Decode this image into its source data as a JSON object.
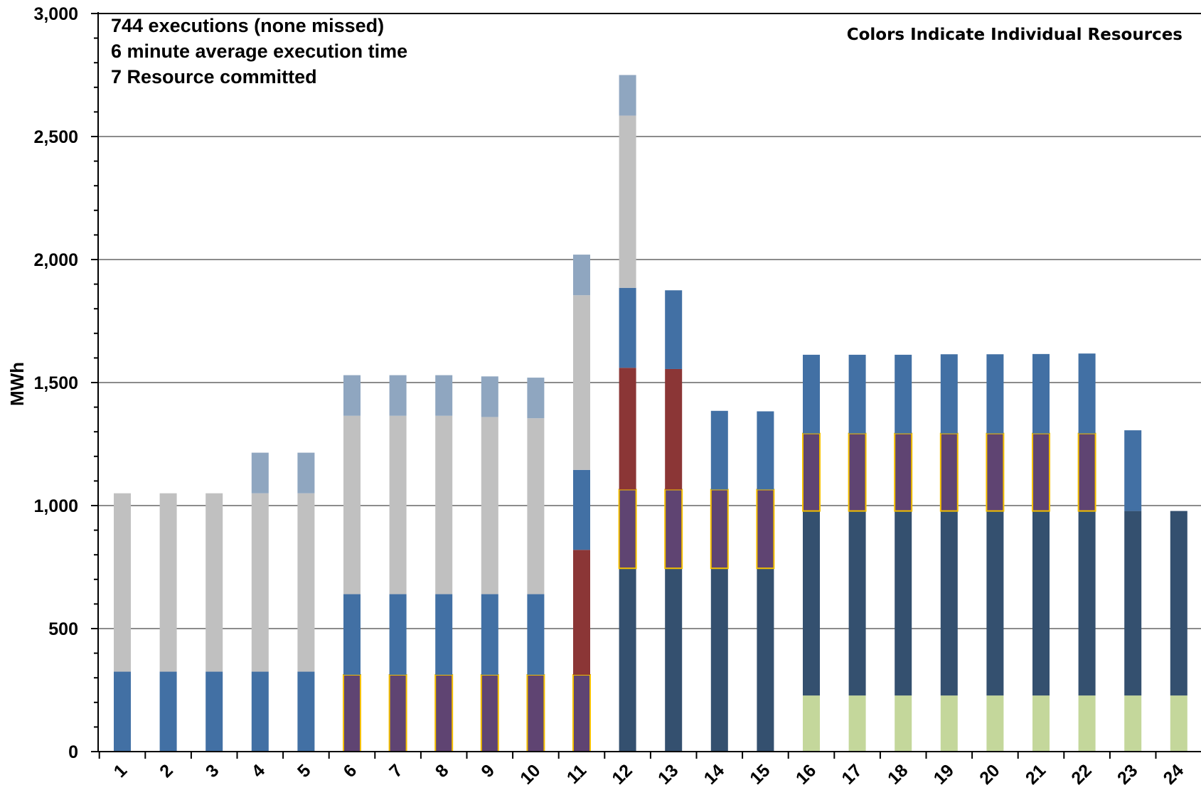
{
  "chart_data": {
    "type": "bar",
    "stacked": true,
    "ylabel": "MWh",
    "ylim": [
      0,
      3000
    ],
    "yticks": [
      "0",
      "500",
      "1,000",
      "1,500",
      "2,000",
      "2,500",
      "3,000"
    ],
    "ytick_values": [
      0,
      500,
      1000,
      1500,
      2000,
      2500,
      3000
    ],
    "grid": true,
    "categories": [
      "1",
      "2",
      "3",
      "4",
      "5",
      "6",
      "7",
      "8",
      "9",
      "10",
      "11",
      "12",
      "13",
      "14",
      "15",
      "16",
      "17",
      "18",
      "19",
      "20",
      "21",
      "22",
      "23",
      "24"
    ],
    "annotations": [
      "744 executions (none missed)",
      "6 minute average execution time",
      "7 Resource committed"
    ],
    "note": "Colors Indicate Individual Resources",
    "resource_colors": {
      "lightgreen": "#c4d79b",
      "navy": "#34506f",
      "purple": "#5f4472",
      "blue": "#4270a4",
      "red": "#8b3636",
      "gray": "#c0c0c0",
      "steel": "#8fa6c0",
      "outline": "#f5c000"
    },
    "bars": [
      {
        "category": "1",
        "segments": [
          [
            "blue",
            325
          ],
          [
            "gray",
            725
          ]
        ]
      },
      {
        "category": "2",
        "segments": [
          [
            "blue",
            325
          ],
          [
            "gray",
            725
          ]
        ]
      },
      {
        "category": "3",
        "segments": [
          [
            "blue",
            325
          ],
          [
            "gray",
            725
          ]
        ]
      },
      {
        "category": "4",
        "segments": [
          [
            "blue",
            325
          ],
          [
            "gray",
            725
          ],
          [
            "steel",
            165
          ]
        ]
      },
      {
        "category": "5",
        "segments": [
          [
            "blue",
            325
          ],
          [
            "gray",
            725
          ],
          [
            "steel",
            165
          ]
        ]
      },
      {
        "category": "6",
        "segments": [
          [
            "purple",
            312
          ],
          [
            "blue",
            328
          ],
          [
            "gray",
            725
          ],
          [
            "steel",
            165
          ]
        ]
      },
      {
        "category": "7",
        "segments": [
          [
            "purple",
            312
          ],
          [
            "blue",
            328
          ],
          [
            "gray",
            725
          ],
          [
            "steel",
            165
          ]
        ]
      },
      {
        "category": "8",
        "segments": [
          [
            "purple",
            312
          ],
          [
            "blue",
            328
          ],
          [
            "gray",
            725
          ],
          [
            "steel",
            165
          ]
        ]
      },
      {
        "category": "9",
        "segments": [
          [
            "purple",
            312
          ],
          [
            "blue",
            328
          ],
          [
            "gray",
            720
          ],
          [
            "steel",
            165
          ]
        ]
      },
      {
        "category": "10",
        "segments": [
          [
            "purple",
            312
          ],
          [
            "blue",
            328
          ],
          [
            "gray",
            715
          ],
          [
            "steel",
            165
          ]
        ]
      },
      {
        "category": "11",
        "segments": [
          [
            "purple",
            312
          ],
          [
            "red",
            508
          ],
          [
            "blue",
            325
          ],
          [
            "gray",
            710
          ],
          [
            "steel",
            165
          ]
        ]
      },
      {
        "category": "12",
        "segments": [
          [
            "navy",
            745
          ],
          [
            "purple",
            320
          ],
          [
            "red",
            495
          ],
          [
            "blue",
            325
          ],
          [
            "gray",
            700
          ],
          [
            "steel",
            165
          ]
        ]
      },
      {
        "category": "13",
        "segments": [
          [
            "navy",
            745
          ],
          [
            "purple",
            320
          ],
          [
            "red",
            490
          ],
          [
            "blue",
            320
          ]
        ]
      },
      {
        "category": "14",
        "segments": [
          [
            "navy",
            745
          ],
          [
            "purple",
            320
          ],
          [
            "blue",
            320
          ]
        ]
      },
      {
        "category": "15",
        "segments": [
          [
            "navy",
            745
          ],
          [
            "purple",
            320
          ],
          [
            "blue",
            318
          ]
        ]
      },
      {
        "category": "16",
        "segments": [
          [
            "lightgreen",
            228
          ],
          [
            "navy",
            750
          ],
          [
            "purple",
            315
          ],
          [
            "blue",
            320
          ]
        ]
      },
      {
        "category": "17",
        "segments": [
          [
            "lightgreen",
            228
          ],
          [
            "navy",
            750
          ],
          [
            "purple",
            315
          ],
          [
            "blue",
            320
          ]
        ]
      },
      {
        "category": "18",
        "segments": [
          [
            "lightgreen",
            228
          ],
          [
            "navy",
            750
          ],
          [
            "purple",
            315
          ],
          [
            "blue",
            320
          ]
        ]
      },
      {
        "category": "19",
        "segments": [
          [
            "lightgreen",
            228
          ],
          [
            "navy",
            750
          ],
          [
            "purple",
            315
          ],
          [
            "blue",
            322
          ]
        ]
      },
      {
        "category": "20",
        "segments": [
          [
            "lightgreen",
            228
          ],
          [
            "navy",
            750
          ],
          [
            "purple",
            315
          ],
          [
            "blue",
            322
          ]
        ]
      },
      {
        "category": "21",
        "segments": [
          [
            "lightgreen",
            228
          ],
          [
            "navy",
            750
          ],
          [
            "purple",
            315
          ],
          [
            "blue",
            323
          ]
        ]
      },
      {
        "category": "22",
        "segments": [
          [
            "lightgreen",
            228
          ],
          [
            "navy",
            750
          ],
          [
            "purple",
            315
          ],
          [
            "blue",
            325
          ]
        ]
      },
      {
        "category": "23",
        "segments": [
          [
            "lightgreen",
            228
          ],
          [
            "navy",
            750
          ],
          [
            "blue",
            328
          ]
        ]
      },
      {
        "category": "24",
        "segments": [
          [
            "lightgreen",
            228
          ],
          [
            "navy",
            750
          ]
        ]
      }
    ]
  }
}
